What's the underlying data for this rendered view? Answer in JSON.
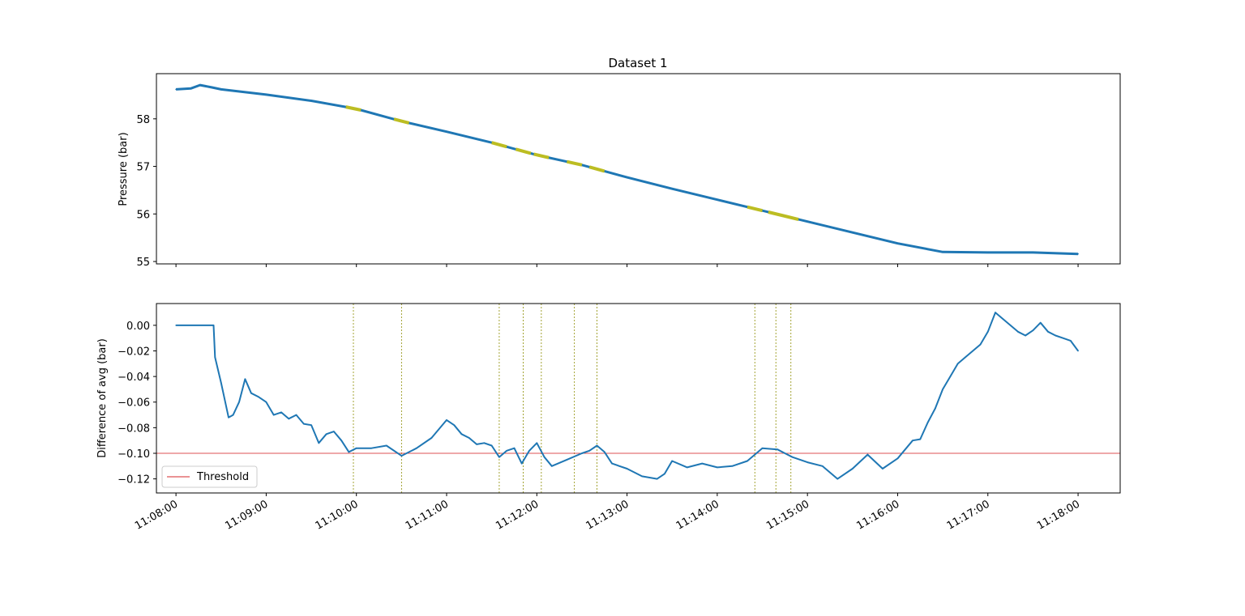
{
  "chart_data": [
    {
      "type": "line",
      "title": "Dataset 1",
      "xlabel": "",
      "ylabel": "Pressure (bar)",
      "xlim": [
        "11:07:47",
        "11:18:28"
      ],
      "ylim": [
        54.95,
        58.95
      ],
      "yticks": [
        55,
        56,
        57,
        58
      ],
      "xticks": [
        "11:08:00",
        "11:09:00",
        "11:10:00",
        "11:11:00",
        "11:12:00",
        "11:13:00",
        "11:14:00",
        "11:15:00",
        "11:16:00",
        "11:17:00",
        "11:18:00"
      ],
      "xtick_labels_shown": false,
      "grid": false,
      "series": [
        {
          "color": "#1f77b4",
          "x": [
            "11:08:00",
            "11:08:10",
            "11:08:16",
            "11:08:24",
            "11:08:30",
            "11:09:00",
            "11:09:30",
            "11:10:00",
            "11:10:30",
            "11:11:00",
            "11:11:30",
            "11:12:00",
            "11:12:30",
            "11:13:00",
            "11:13:30",
            "11:14:00",
            "11:14:30",
            "11:15:00",
            "11:15:30",
            "11:16:00",
            "11:16:30",
            "11:17:00",
            "11:17:30",
            "11:18:00"
          ],
          "values": [
            58.62,
            58.64,
            58.71,
            58.66,
            58.62,
            58.51,
            58.38,
            58.21,
            57.95,
            57.73,
            57.5,
            57.24,
            57.03,
            56.77,
            56.53,
            56.3,
            56.07,
            55.84,
            55.61,
            55.38,
            55.2,
            55.19,
            55.19,
            55.16
          ]
        }
      ],
      "highlight_segments": {
        "color": "#bcbd22",
        "ranges": [
          [
            "11:09:53",
            "11:10:03"
          ],
          [
            "11:10:25",
            "11:10:35"
          ],
          [
            "11:11:30",
            "11:11:40"
          ],
          [
            "11:11:46",
            "11:11:56"
          ],
          [
            "11:11:58",
            "11:12:08"
          ],
          [
            "11:12:20",
            "11:12:30"
          ],
          [
            "11:12:35",
            "11:12:45"
          ],
          [
            "11:14:20",
            "11:14:30"
          ],
          [
            "11:14:34",
            "11:14:44"
          ],
          [
            "11:14:44",
            "11:14:54"
          ]
        ]
      }
    },
    {
      "type": "line",
      "title": "",
      "xlabel": "",
      "ylabel": "Difference of avg (bar)",
      "xlim": [
        "11:07:47",
        "11:18:28"
      ],
      "ylim": [
        -0.131,
        0.017
      ],
      "yticks": [
        -0.12,
        -0.1,
        -0.08,
        -0.06,
        -0.04,
        -0.02,
        0.0
      ],
      "ytick_labels": [
        "−0.12",
        "−0.10",
        "−0.08",
        "−0.06",
        "−0.04",
        "−0.02",
        "0.00"
      ],
      "xticks": [
        "11:08:00",
        "11:09:00",
        "11:10:00",
        "11:11:00",
        "11:12:00",
        "11:13:00",
        "11:14:00",
        "11:15:00",
        "11:16:00",
        "11:17:00",
        "11:18:00"
      ],
      "grid": false,
      "legend": {
        "placement": "lower-left",
        "entries": [
          "Threshold"
        ]
      },
      "threshold": {
        "name": "Threshold",
        "value": -0.1,
        "color": "#d62728"
      },
      "vertical_markers": {
        "color": "#8c8c00",
        "x": [
          "11:09:58",
          "11:10:30",
          "11:11:35",
          "11:11:51",
          "11:12:03",
          "11:12:25",
          "11:12:40",
          "11:14:25",
          "11:14:39",
          "11:14:49"
        ]
      },
      "series": [
        {
          "color": "#1f77b4",
          "x": [
            "11:08:00",
            "11:08:25",
            "11:08:26",
            "11:08:30",
            "11:08:35",
            "11:08:38",
            "11:08:42",
            "11:08:46",
            "11:08:50",
            "11:08:55",
            "11:09:00",
            "11:09:05",
            "11:09:10",
            "11:09:15",
            "11:09:20",
            "11:09:25",
            "11:09:30",
            "11:09:35",
            "11:09:40",
            "11:09:45",
            "11:09:50",
            "11:09:55",
            "11:10:00",
            "11:10:10",
            "11:10:20",
            "11:10:30",
            "11:10:40",
            "11:10:50",
            "11:11:00",
            "11:11:05",
            "11:11:10",
            "11:11:15",
            "11:11:20",
            "11:11:25",
            "11:11:30",
            "11:11:35",
            "11:11:40",
            "11:11:45",
            "11:11:50",
            "11:11:55",
            "11:12:00",
            "11:12:05",
            "11:12:10",
            "11:12:20",
            "11:12:30",
            "11:12:35",
            "11:12:40",
            "11:12:45",
            "11:12:50",
            "11:13:00",
            "11:13:10",
            "11:13:20",
            "11:13:25",
            "11:13:30",
            "11:13:40",
            "11:13:50",
            "11:14:00",
            "11:14:10",
            "11:14:20",
            "11:14:30",
            "11:14:40",
            "11:14:45",
            "11:14:50",
            "11:15:00",
            "11:15:10",
            "11:15:20",
            "11:15:30",
            "11:15:40",
            "11:15:50",
            "11:16:00",
            "11:16:10",
            "11:16:15",
            "11:16:20",
            "11:16:25",
            "11:16:30",
            "11:16:35",
            "11:16:40",
            "11:16:45",
            "11:16:50",
            "11:16:55",
            "11:17:00",
            "11:17:05",
            "11:17:10",
            "11:17:15",
            "11:17:20",
            "11:17:25",
            "11:17:30",
            "11:17:35",
            "11:17:40",
            "11:17:45",
            "11:17:50",
            "11:17:55",
            "11:18:00"
          ],
          "values": [
            0.0,
            0.0,
            -0.025,
            -0.045,
            -0.072,
            -0.07,
            -0.06,
            -0.042,
            -0.053,
            -0.056,
            -0.06,
            -0.07,
            -0.068,
            -0.073,
            -0.07,
            -0.077,
            -0.078,
            -0.092,
            -0.085,
            -0.083,
            -0.09,
            -0.099,
            -0.096,
            -0.096,
            -0.094,
            -0.102,
            -0.096,
            -0.088,
            -0.074,
            -0.078,
            -0.085,
            -0.088,
            -0.093,
            -0.092,
            -0.094,
            -0.103,
            -0.098,
            -0.096,
            -0.108,
            -0.098,
            -0.092,
            -0.103,
            -0.11,
            -0.105,
            -0.1,
            -0.098,
            -0.094,
            -0.099,
            -0.108,
            -0.112,
            -0.118,
            -0.12,
            -0.116,
            -0.106,
            -0.111,
            -0.108,
            -0.111,
            -0.11,
            -0.106,
            -0.096,
            -0.097,
            -0.1,
            -0.103,
            -0.107,
            -0.11,
            -0.12,
            -0.112,
            -0.101,
            -0.112,
            -0.104,
            -0.09,
            -0.089,
            -0.076,
            -0.065,
            -0.05,
            -0.04,
            -0.03,
            -0.025,
            -0.02,
            -0.015,
            -0.005,
            0.01,
            0.005,
            0.0,
            -0.005,
            -0.008,
            -0.004,
            0.002,
            -0.005,
            -0.008,
            -0.01,
            -0.012,
            -0.02
          ]
        }
      ]
    }
  ]
}
